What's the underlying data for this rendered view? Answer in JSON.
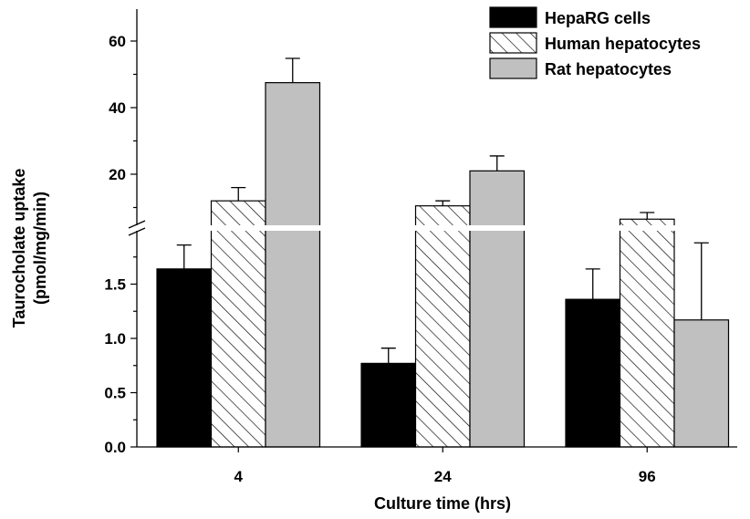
{
  "chart_data": {
    "type": "bar",
    "title": "",
    "xlabel": "Culture time (hrs)",
    "ylabel": [
      "Taurocholate uptake",
      "(pmol/mg/min)"
    ],
    "categories": [
      "4",
      "24",
      "96"
    ],
    "broken_axis": true,
    "upper_segment": {
      "ylim": [
        4,
        70
      ],
      "ticks": [
        "20",
        "40",
        "60"
      ]
    },
    "lower_segment": {
      "ylim": [
        0,
        1.9
      ],
      "ticks": [
        "0.0",
        "0.5",
        "1.0",
        "1.5"
      ]
    },
    "series": [
      {
        "name": "HepaRG cells",
        "pattern": "solid",
        "color": "#000000",
        "values": [
          1.64,
          0.77,
          1.36
        ],
        "errors": [
          0.22,
          0.14,
          0.28
        ],
        "segment": "lower"
      },
      {
        "name": "Human hepatocytes",
        "pattern": "hatch",
        "color": "#ffffff",
        "values": [
          12,
          10.5,
          6.5
        ],
        "errors": [
          4,
          1.5,
          2.0
        ],
        "segment": "upper"
      },
      {
        "name": "Rat hepatocytes",
        "pattern": "solid",
        "color": "#c0c0c0",
        "values": [
          47.5,
          21,
          1.17
        ],
        "errors": [
          7.3,
          4.5,
          0.71
        ],
        "segment": [
          "upper",
          "upper",
          "lower"
        ]
      }
    ],
    "legend_position": "top-right",
    "grid": false
  }
}
